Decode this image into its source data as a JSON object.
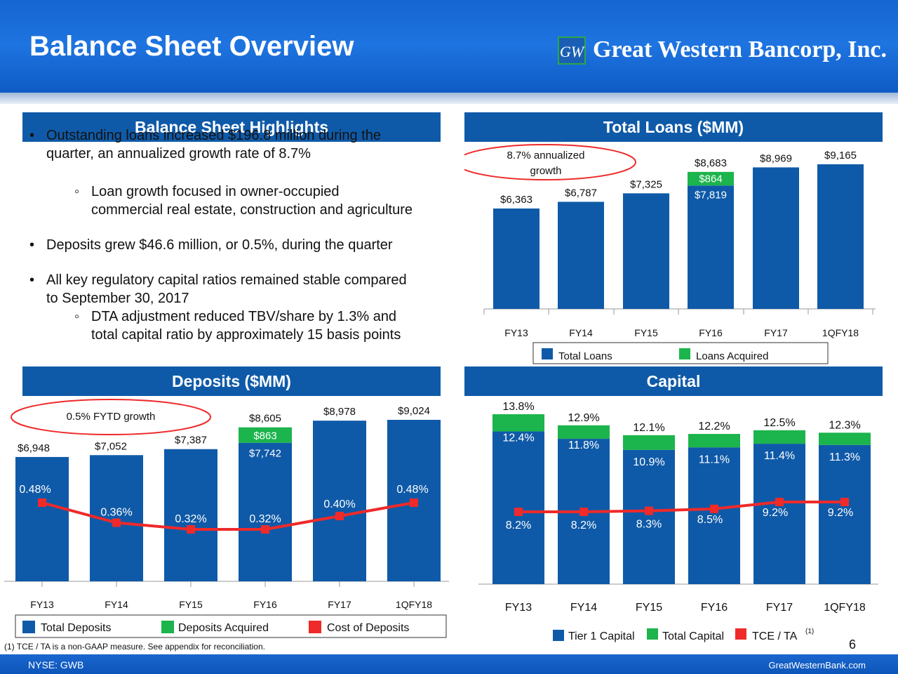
{
  "header": {
    "title": "Balance Sheet Overview",
    "logo_text": "Great Western Bancorp, Inc.",
    "logo_mark": "GW"
  },
  "panels": {
    "highlights_title": "Balance Sheet Highlights",
    "loans_title": "Total Loans ($MM)",
    "deposits_title": "Deposits ($MM)",
    "capital_title": "Capital"
  },
  "highlights": {
    "bullet1_line1": "Outstanding loans increased $196.8 million during the",
    "bullet1_line2": "quarter, an annualized growth rate of 8.7%",
    "sub1_line1": "Loan growth focused in owner-occupied",
    "sub1_line2": "commercial real estate, construction and agriculture",
    "bullet2": "Deposits grew $46.6 million, or 0.5%, during the quarter",
    "bullet3_line1": "All key regulatory capital ratios remained stable compared",
    "bullet3_line2": "to September 30, 2017",
    "sub3_line1": "DTA adjustment reduced TBV/share by 1.3% and",
    "sub3_line2": "total capital ratio by approximately 15 basis points"
  },
  "colors": {
    "blue": "#0f5aa8",
    "green": "#1cb44c",
    "red": "#ee2a2a",
    "header": "#1565d2"
  },
  "chart_data": [
    {
      "name": "loans",
      "type": "bar",
      "categories": [
        "FY13",
        "FY14",
        "FY15",
        "FY16",
        "FY17",
        "1QFY18"
      ],
      "series": [
        {
          "name": "Total Loans",
          "values": [
            6363,
            6787,
            7325,
            7819,
            8969,
            9165
          ]
        },
        {
          "name": "Loans Acquired",
          "values": [
            0,
            0,
            0,
            864,
            0,
            0
          ]
        }
      ],
      "total_labels": [
        "$6,363",
        "$6,787",
        "$7,325",
        "$8,683",
        "$8,969",
        "$9,165"
      ],
      "base_label_fy16": "$7,819",
      "acquired_label_fy16": "$864",
      "callout_line1": "8.7% annualized",
      "callout_line2": "growth",
      "legend": [
        "Total Loans",
        "Loans Acquired"
      ],
      "ylim": [
        0,
        9165
      ]
    },
    {
      "name": "deposits",
      "type": "bar",
      "categories": [
        "FY13",
        "FY14",
        "FY15",
        "FY16",
        "FY17",
        "1QFY18"
      ],
      "series": [
        {
          "name": "Total Deposits",
          "values": [
            6948,
            7052,
            7387,
            7742,
            8978,
            9024
          ]
        },
        {
          "name": "Deposits Acquired",
          "values": [
            0,
            0,
            0,
            863,
            0,
            0
          ]
        },
        {
          "name": "Cost of Deposits",
          "values": [
            0.48,
            0.36,
            0.32,
            0.32,
            0.4,
            0.48
          ]
        }
      ],
      "total_labels": [
        "$6,948",
        "$7,052",
        "$7,387",
        "$8,605",
        "$8,978",
        "$9,024"
      ],
      "base_label_fy16": "$7,742",
      "acquired_label_fy16": "$863",
      "cost_labels": [
        "0.48%",
        "0.36%",
        "0.32%",
        "0.32%",
        "0.40%",
        "0.48%"
      ],
      "callout": "0.5% FYTD growth",
      "legend": [
        "Total Deposits",
        "Deposits Acquired",
        "Cost of Deposits"
      ]
    },
    {
      "name": "capital",
      "type": "bar",
      "categories": [
        "FY13",
        "FY14",
        "FY15",
        "FY16",
        "FY17",
        "1QFY18"
      ],
      "series": [
        {
          "name": "Tier 1 Capital",
          "values": [
            12.4,
            11.8,
            10.9,
            11.1,
            11.4,
            11.3
          ]
        },
        {
          "name": "Total Capital",
          "values": [
            13.8,
            12.9,
            12.1,
            12.2,
            12.5,
            12.3
          ]
        },
        {
          "name": "TCE / TA",
          "values": [
            8.2,
            8.2,
            8.3,
            8.5,
            9.2,
            9.2
          ]
        }
      ],
      "tier1_labels": [
        "12.4%",
        "11.8%",
        "10.9%",
        "11.1%",
        "11.4%",
        "11.3%"
      ],
      "total_labels": [
        "13.8%",
        "12.9%",
        "12.1%",
        "12.2%",
        "12.5%",
        "12.3%"
      ],
      "tce_labels": [
        "8.2%",
        "8.2%",
        "8.3%",
        "8.5%",
        "9.2%",
        "9.2%"
      ],
      "legend": [
        "Tier 1 Capital",
        "Total Capital",
        "TCE / TA"
      ],
      "legend_footnote_marker": "(1)"
    }
  ],
  "footer": {
    "footnote": "(1) TCE / TA is a non-GAAP measure.  See appendix for reconciliation.",
    "page_number": "6",
    "ticker": "NYSE: GWB",
    "website": "GreatWesternBank.com"
  }
}
